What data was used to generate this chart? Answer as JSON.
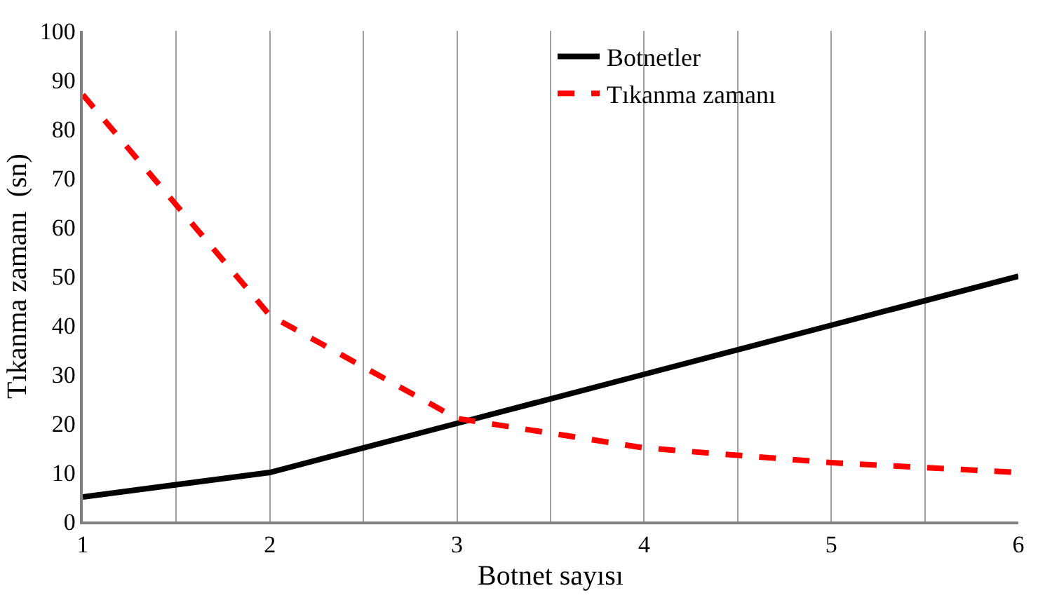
{
  "chart_data": {
    "type": "line",
    "xlabel": "Botnet sayısı",
    "ylabel": "Tıkanma zamanı  (sn)",
    "x": [
      1,
      2,
      3,
      4,
      5,
      6
    ],
    "series": [
      {
        "name": "Botnetler",
        "color": "#000000",
        "line_style": "solid",
        "values": [
          5,
          10,
          20,
          30,
          40,
          50
        ]
      },
      {
        "name": "Tıkanma zamanı",
        "color": "#ff0000",
        "line_style": "dashed",
        "values": [
          87,
          42,
          21,
          15,
          12,
          10
        ]
      }
    ],
    "xlim": [
      1,
      6
    ],
    "ylim": [
      0,
      100
    ],
    "xticks": [
      1,
      {
        "value": 1.5,
        "label": null
      },
      2,
      {
        "value": 2.5,
        "label": null
      },
      3,
      {
        "value": 3.5,
        "label": null
      },
      4,
      {
        "value": 4.5,
        "label": null
      },
      5,
      {
        "value": 5.5,
        "label": null
      },
      6
    ],
    "yticks": [
      0,
      10,
      20,
      30,
      40,
      50,
      60,
      70,
      80,
      90,
      100
    ],
    "grid": "x",
    "legend": "top right",
    "marker": "none"
  }
}
